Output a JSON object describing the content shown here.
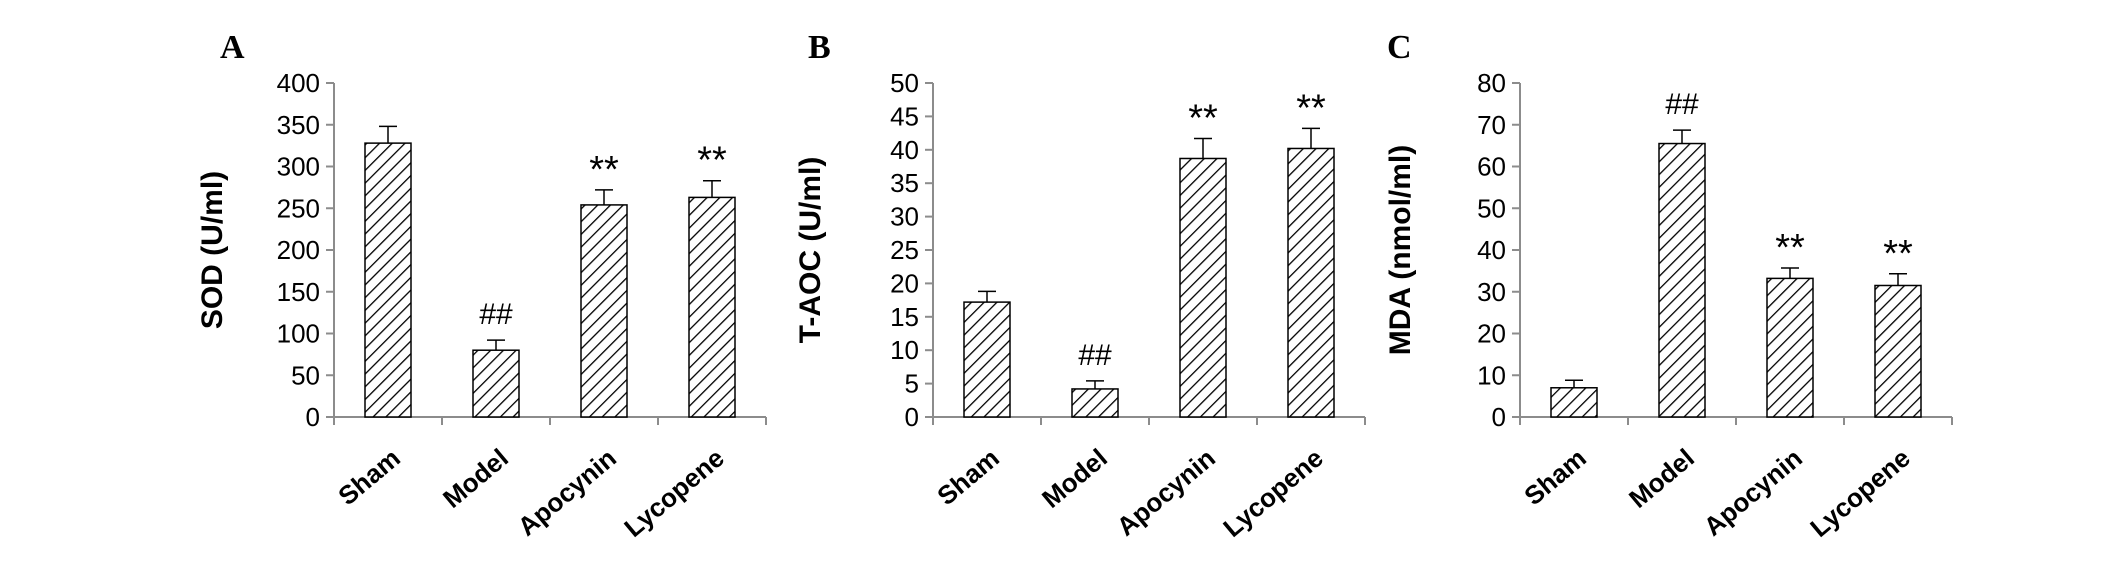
{
  "chart_data": [
    {
      "panel": "A",
      "type": "bar",
      "categories": [
        "Sham",
        "Model",
        "Apocynin",
        "Lycopene"
      ],
      "values": [
        328,
        80,
        254,
        263
      ],
      "errors": [
        20,
        12,
        18,
        20
      ],
      "annotations": [
        "",
        "##",
        "**",
        "**"
      ],
      "xlabel": "",
      "ylabel": "SOD (U/ml)",
      "ylim": [
        0,
        400
      ],
      "yticks": [
        "0",
        "50",
        "100",
        "150",
        "200",
        "250",
        "300",
        "350",
        "400"
      ],
      "bar_fill": "diagonal hatch",
      "grid": false
    },
    {
      "panel": "B",
      "type": "bar",
      "categories": [
        "Sham",
        "Model",
        "Apocynin",
        "Lycopene"
      ],
      "values": [
        17.2,
        4.2,
        38.7,
        40.2
      ],
      "errors": [
        1.6,
        1.2,
        3.0,
        3.0
      ],
      "annotations": [
        "",
        "##",
        "**",
        "**"
      ],
      "xlabel": "",
      "ylabel": "T-AOC (U/ml)",
      "ylim": [
        0,
        50
      ],
      "yticks": [
        "0",
        "5",
        "10",
        "15",
        "20",
        "25",
        "30",
        "35",
        "40",
        "45",
        "50"
      ],
      "bar_fill": "diagonal hatch",
      "grid": false
    },
    {
      "panel": "C",
      "type": "bar",
      "categories": [
        "Sham",
        "Model",
        "Apocynin",
        "Lycopene"
      ],
      "values": [
        7,
        65.5,
        33.2,
        31.5
      ],
      "errors": [
        1.8,
        3.2,
        2.5,
        2.8
      ],
      "annotations": [
        "",
        "##",
        "**",
        "**"
      ],
      "xlabel": "",
      "ylabel": "MDA (nmol/ml)",
      "ylim": [
        0,
        80
      ],
      "yticks": [
        "0",
        "10",
        "20",
        "30",
        "40",
        "50",
        "60",
        "70",
        "80"
      ],
      "bar_fill": "diagonal hatch",
      "grid": false
    }
  ],
  "colors": {
    "bar_stroke": "#000000",
    "hatch": "#000000",
    "background": "#ffffff"
  }
}
